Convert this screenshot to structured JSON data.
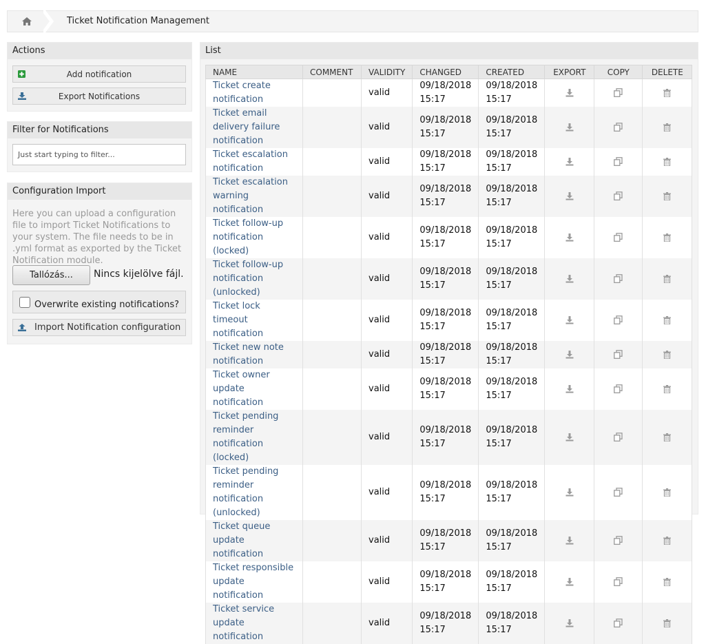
{
  "breadcrumb": {
    "home_icon": "home-icon",
    "title": "Ticket Notification Management"
  },
  "actions": {
    "title": "Actions",
    "add_label": "Add notification",
    "export_label": "Export Notifications"
  },
  "filter": {
    "title": "Filter for Notifications",
    "placeholder": "Just start typing to filter..."
  },
  "config_import": {
    "title": "Configuration Import",
    "description": "Here you can upload a configuration file to import Ticket Notifications to your system. The file needs to be in .yml format as exported by the Ticket Notification module.",
    "file_button": "Tallózás...",
    "file_status": "Nincs kijelölve fájl.",
    "overwrite_label": "Overwrite existing notifications?",
    "import_label": "Import Notification configuration"
  },
  "list": {
    "title": "List",
    "columns": [
      "NAME",
      "COMMENT",
      "VALIDITY",
      "CHANGED",
      "CREATED",
      "EXPORT",
      "COPY",
      "DELETE"
    ],
    "rows": [
      {
        "name": "Ticket create notification",
        "comment": "",
        "validity": "valid",
        "changed": "09/18/2018 15:17",
        "created": "09/18/2018 15:17"
      },
      {
        "name": "Ticket email delivery failure notification",
        "comment": "",
        "validity": "valid",
        "changed": "09/18/2018 15:17",
        "created": "09/18/2018 15:17"
      },
      {
        "name": "Ticket escalation notification",
        "comment": "",
        "validity": "valid",
        "changed": "09/18/2018 15:17",
        "created": "09/18/2018 15:17"
      },
      {
        "name": "Ticket escalation warning notification",
        "comment": "",
        "validity": "valid",
        "changed": "09/18/2018 15:17",
        "created": "09/18/2018 15:17"
      },
      {
        "name": "Ticket follow-up notification (locked)",
        "comment": "",
        "validity": "valid",
        "changed": "09/18/2018 15:17",
        "created": "09/18/2018 15:17"
      },
      {
        "name": "Ticket follow-up notification (unlocked)",
        "comment": "",
        "validity": "valid",
        "changed": "09/18/2018 15:17",
        "created": "09/18/2018 15:17"
      },
      {
        "name": "Ticket lock timeout notification",
        "comment": "",
        "validity": "valid",
        "changed": "09/18/2018 15:17",
        "created": "09/18/2018 15:17"
      },
      {
        "name": "Ticket new note notification",
        "comment": "",
        "validity": "valid",
        "changed": "09/18/2018 15:17",
        "created": "09/18/2018 15:17"
      },
      {
        "name": "Ticket owner update notification",
        "comment": "",
        "validity": "valid",
        "changed": "09/18/2018 15:17",
        "created": "09/18/2018 15:17"
      },
      {
        "name": "Ticket pending reminder notification (locked)",
        "comment": "",
        "validity": "valid",
        "changed": "09/18/2018 15:17",
        "created": "09/18/2018 15:17"
      },
      {
        "name": "Ticket pending reminder notification (unlocked)",
        "comment": "",
        "validity": "valid",
        "changed": "09/18/2018 15:17",
        "created": "09/18/2018 15:17"
      },
      {
        "name": "Ticket queue update notification",
        "comment": "",
        "validity": "valid",
        "changed": "09/18/2018 15:17",
        "created": "09/18/2018 15:17"
      },
      {
        "name": "Ticket responsible update notification",
        "comment": "",
        "validity": "valid",
        "changed": "09/18/2018 15:17",
        "created": "09/18/2018 15:17"
      },
      {
        "name": "Ticket service update notification",
        "comment": "",
        "validity": "valid",
        "changed": "09/18/2018 15:17",
        "created": "09/18/2018 15:17"
      }
    ]
  },
  "icons": {
    "add": "plus-square-icon",
    "export": "download-icon",
    "import": "upload-icon",
    "copy": "copy-icon",
    "delete": "trash-icon"
  },
  "colors": {
    "link": "#3b5e85",
    "add_icon": "#2b9a3c",
    "export_icon": "#3a6f97",
    "row_icon": "#9a9a9a"
  }
}
